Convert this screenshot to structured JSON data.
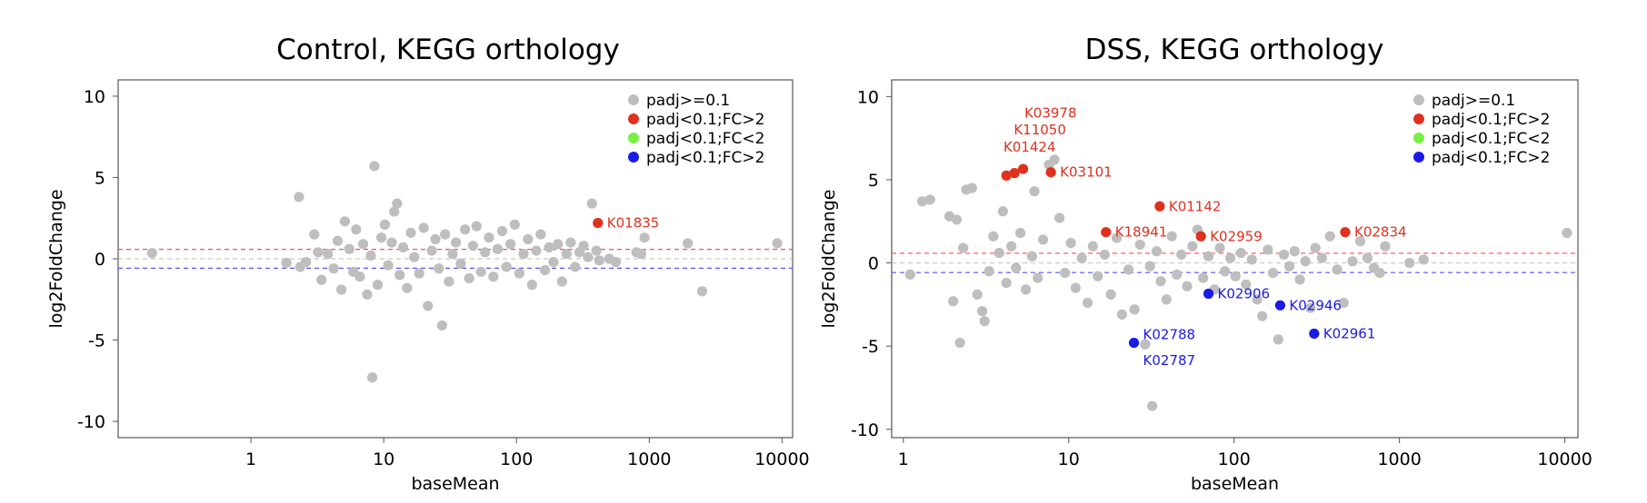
{
  "colors": {
    "gray": "#bebebe",
    "red": "#e0301e",
    "green": "#77f043",
    "blue": "#1a1ae6",
    "up_threshold": "#ff4c4c",
    "down_threshold": "#5555ff",
    "zero_line": "#c8c8c8"
  },
  "chart_data": [
    {
      "type": "scatter",
      "title": "Control, KEGG orthology",
      "xlabel": "baseMean",
      "ylabel": "log2FoldChange",
      "x_scale": "log",
      "xlim": [
        0.1,
        12000
      ],
      "ylim": [
        -11,
        11
      ],
      "x_ticks": [
        1,
        10,
        100,
        1000,
        10000
      ],
      "x_tick_labels": [
        "1",
        "10",
        "100",
        "1000",
        "10000"
      ],
      "y_ticks": [
        -10,
        -5,
        0,
        5,
        10
      ],
      "y_tick_labels": [
        "-10",
        "-5",
        "0",
        "5",
        "10"
      ],
      "thresholds": {
        "up": 0.58,
        "down": -0.58
      },
      "grid": false,
      "legend_position": "top-right",
      "legend": [
        {
          "label": "padj>=0.1",
          "color": "#bebebe"
        },
        {
          "label": "padj<0.1;FC>2",
          "color": "#e0301e"
        },
        {
          "label": "padj<0.1;FC<2",
          "color": "#77f043"
        },
        {
          "label": "padj<0.1;FC>2",
          "color": "#1a1ae6"
        }
      ],
      "series": [
        {
          "color": "#bebebe",
          "points": [
            [
              0.18,
              0.35
            ],
            [
              1.85,
              -0.25
            ],
            [
              2.3,
              3.8
            ],
            [
              2.35,
              -0.5
            ],
            [
              2.6,
              -0.2
            ],
            [
              3.0,
              1.5
            ],
            [
              3.2,
              0.4
            ],
            [
              3.4,
              -1.3
            ],
            [
              3.8,
              0.3
            ],
            [
              4.2,
              -0.6
            ],
            [
              4.5,
              1.1
            ],
            [
              4.8,
              -1.9
            ],
            [
              5.1,
              2.3
            ],
            [
              5.5,
              0.6
            ],
            [
              5.9,
              -0.8
            ],
            [
              6.2,
              1.8
            ],
            [
              6.6,
              -1.1
            ],
            [
              7.0,
              0.9
            ],
            [
              7.5,
              -2.2
            ],
            [
              8.0,
              0.2
            ],
            [
              8.5,
              5.7
            ],
            [
              8.2,
              -7.3
            ],
            [
              9.0,
              -1.6
            ],
            [
              9.6,
              1.3
            ],
            [
              10.2,
              2.1
            ],
            [
              10.8,
              -0.4
            ],
            [
              11.5,
              1.0
            ],
            [
              12.0,
              2.9
            ],
            [
              12.6,
              3.4
            ],
            [
              13.2,
              -1.0
            ],
            [
              14.0,
              0.7
            ],
            [
              15.0,
              -1.8
            ],
            [
              16.0,
              1.6
            ],
            [
              17.0,
              0.1
            ],
            [
              18.5,
              -0.9
            ],
            [
              20.0,
              1.9
            ],
            [
              21.5,
              -2.9
            ],
            [
              23.0,
              0.5
            ],
            [
              24.5,
              1.2
            ],
            [
              26.0,
              -0.6
            ],
            [
              27.5,
              -4.1
            ],
            [
              29.0,
              1.5
            ],
            [
              31.0,
              -1.4
            ],
            [
              33.0,
              0.3
            ],
            [
              35.0,
              1.0
            ],
            [
              38.0,
              -0.3
            ],
            [
              41.0,
              1.8
            ],
            [
              44.0,
              -1.2
            ],
            [
              47.0,
              0.8
            ],
            [
              50.0,
              2.0
            ],
            [
              54.0,
              -0.8
            ],
            [
              58.0,
              0.4
            ],
            [
              62.0,
              1.3
            ],
            [
              67.0,
              -1.1
            ],
            [
              72.0,
              0.6
            ],
            [
              78.0,
              1.7
            ],
            [
              84.0,
              -0.5
            ],
            [
              90.0,
              0.9
            ],
            [
              97.0,
              2.1
            ],
            [
              105.0,
              -0.9
            ],
            [
              113.0,
              0.3
            ],
            [
              122.0,
              1.2
            ],
            [
              131.0,
              -1.6
            ],
            [
              141.0,
              0.5
            ],
            [
              152.0,
              1.5
            ],
            [
              164.0,
              -0.7
            ],
            [
              176.0,
              0.7
            ],
            [
              190.0,
              -0.2
            ],
            [
              205.0,
              0.9
            ],
            [
              220.0,
              -1.4
            ],
            [
              238.0,
              0.3
            ],
            [
              256.0,
              1.0
            ],
            [
              276.0,
              -0.5
            ],
            [
              298.0,
              0.4
            ],
            [
              320.0,
              0.8
            ],
            [
              345.0,
              0.1
            ],
            [
              370.0,
              3.4
            ],
            [
              400.0,
              0.5
            ],
            [
              420.0,
              -0.1
            ],
            [
              500.0,
              0.0
            ],
            [
              560.0,
              -0.2
            ],
            [
              800.0,
              0.4
            ],
            [
              870.0,
              0.3
            ],
            [
              920.0,
              1.3
            ],
            [
              1950.0,
              0.95
            ],
            [
              2500.0,
              -2.0
            ],
            [
              9200.0,
              0.95
            ]
          ]
        },
        {
          "color": "#e0301e",
          "points": [
            [
              410.0,
              2.2
            ]
          ]
        },
        {
          "color": "#77f043",
          "points": []
        },
        {
          "color": "#1a1ae6",
          "points": []
        }
      ],
      "annotations": [
        {
          "text": "K01835",
          "x": 410.0,
          "y": 2.2,
          "color": "#e0301e"
        }
      ]
    },
    {
      "type": "scatter",
      "title": "DSS, KEGG orthology",
      "xlabel": "baseMean",
      "ylabel": "log2FoldChange",
      "x_scale": "log",
      "xlim": [
        0.85,
        12000
      ],
      "ylim": [
        -10.5,
        11
      ],
      "x_ticks": [
        1,
        10,
        100,
        1000,
        10000
      ],
      "x_tick_labels": [
        "1",
        "10",
        "100",
        "1000",
        "10000"
      ],
      "y_ticks": [
        -10,
        -5,
        0,
        5,
        10
      ],
      "y_tick_labels": [
        "-10",
        "-5",
        "0",
        "5",
        "10"
      ],
      "thresholds": {
        "up": 0.58,
        "down": -0.58
      },
      "grid": false,
      "legend_position": "top-right",
      "legend": [
        {
          "label": "padj>=0.1",
          "color": "#bebebe"
        },
        {
          "label": "padj<0.1;FC>2",
          "color": "#e0301e"
        },
        {
          "label": "padj<0.1;FC<2",
          "color": "#77f043"
        },
        {
          "label": "padj<0.1;FC>2",
          "color": "#1a1ae6"
        }
      ],
      "series": [
        {
          "color": "#bebebe",
          "points": [
            [
              1.1,
              -0.7
            ],
            [
              1.3,
              3.7
            ],
            [
              1.45,
              3.8
            ],
            [
              1.9,
              2.8
            ],
            [
              2.0,
              -2.3
            ],
            [
              2.1,
              2.6
            ],
            [
              2.2,
              -4.8
            ],
            [
              2.3,
              0.9
            ],
            [
              2.4,
              4.4
            ],
            [
              2.6,
              4.5
            ],
            [
              2.8,
              -1.9
            ],
            [
              3.0,
              -2.9
            ],
            [
              3.1,
              -3.5
            ],
            [
              3.3,
              -0.5
            ],
            [
              3.5,
              1.6
            ],
            [
              3.8,
              0.6
            ],
            [
              4.0,
              3.1
            ],
            [
              4.2,
              -1.2
            ],
            [
              4.5,
              1.0
            ],
            [
              4.8,
              -0.3
            ],
            [
              5.1,
              1.8
            ],
            [
              5.5,
              -1.6
            ],
            [
              6.0,
              0.4
            ],
            [
              6.2,
              4.3
            ],
            [
              6.5,
              -0.9
            ],
            [
              7.0,
              1.4
            ],
            [
              7.6,
              5.9
            ],
            [
              8.2,
              6.2
            ],
            [
              8.8,
              2.7
            ],
            [
              9.5,
              -0.6
            ],
            [
              10.3,
              1.2
            ],
            [
              11.0,
              -1.5
            ],
            [
              12.0,
              0.3
            ],
            [
              13.0,
              -2.4
            ],
            [
              14.0,
              1.0
            ],
            [
              15.0,
              -0.8
            ],
            [
              16.5,
              0.5
            ],
            [
              18.0,
              -1.9
            ],
            [
              19.5,
              1.5
            ],
            [
              21.0,
              -3.1
            ],
            [
              23.0,
              -0.4
            ],
            [
              25.0,
              -2.8
            ],
            [
              27.0,
              1.1
            ],
            [
              29.0,
              -4.9
            ],
            [
              31.0,
              -0.2
            ],
            [
              32.0,
              -8.6
            ],
            [
              34.0,
              0.7
            ],
            [
              36.0,
              -1.1
            ],
            [
              39.0,
              -2.2
            ],
            [
              42.0,
              1.6
            ],
            [
              45.0,
              -0.7
            ],
            [
              48.0,
              0.5
            ],
            [
              52.0,
              -1.4
            ],
            [
              56.0,
              1.0
            ],
            [
              60.0,
              2.0
            ],
            [
              65.0,
              -0.9
            ],
            [
              70.0,
              0.4
            ],
            [
              76.0,
              -1.6
            ],
            [
              82.0,
              0.9
            ],
            [
              88.0,
              -0.5
            ],
            [
              95.0,
              0.3
            ],
            [
              102.0,
              -0.8
            ],
            [
              110.0,
              0.6
            ],
            [
              118.0,
              -1.3
            ],
            [
              128.0,
              0.2
            ],
            [
              138.0,
              -2.2
            ],
            [
              148.0,
              -3.2
            ],
            [
              160.0,
              0.8
            ],
            [
              172.0,
              -0.6
            ],
            [
              185.0,
              -4.6
            ],
            [
              200.0,
              0.5
            ],
            [
              216.0,
              -0.2
            ],
            [
              232.0,
              0.7
            ],
            [
              250.0,
              -1.0
            ],
            [
              270.0,
              0.1
            ],
            [
              290.0,
              -2.7
            ],
            [
              310.0,
              0.9
            ],
            [
              340.0,
              0.3
            ],
            [
              380.0,
              1.6
            ],
            [
              420.0,
              -0.4
            ],
            [
              460.0,
              -2.4
            ],
            [
              520.0,
              0.1
            ],
            [
              580.0,
              1.3
            ],
            [
              640.0,
              0.3
            ],
            [
              700.0,
              -0.3
            ],
            [
              760.0,
              -0.6
            ],
            [
              820.0,
              1.0
            ],
            [
              1150.0,
              0.0
            ],
            [
              1400.0,
              0.2
            ],
            [
              10300.0,
              1.8
            ]
          ]
        },
        {
          "color": "#e0301e",
          "points": [
            [
              4.2,
              5.25
            ],
            [
              4.7,
              5.4
            ],
            [
              5.3,
              5.65
            ],
            [
              7.8,
              5.45
            ],
            [
              16.8,
              1.85
            ],
            [
              35.5,
              3.4
            ],
            [
              63.0,
              1.6
            ],
            [
              470.0,
              1.85
            ]
          ]
        },
        {
          "color": "#77f043",
          "points": []
        },
        {
          "color": "#1a1ae6",
          "points": [
            [
              24.8,
              -4.8
            ],
            [
              70.0,
              -1.85
            ],
            [
              190.0,
              -2.55
            ],
            [
              305.0,
              -4.25
            ]
          ]
        }
      ],
      "annotations": [
        {
          "text": "K03978",
          "x": 4.75,
          "y": 9.0,
          "color": "#e0301e"
        },
        {
          "text": "K11050",
          "x": 4.1,
          "y": 8.0,
          "color": "#e0301e"
        },
        {
          "text": "K01424",
          "x": 3.55,
          "y": 6.95,
          "color": "#e0301e"
        },
        {
          "text": "K03101",
          "x": 7.8,
          "y": 5.45,
          "color": "#e0301e"
        },
        {
          "text": "K01142",
          "x": 35.5,
          "y": 3.4,
          "color": "#e0301e"
        },
        {
          "text": "K18941",
          "x": 16.8,
          "y": 1.85,
          "color": "#e0301e"
        },
        {
          "text": "K02959",
          "x": 63.0,
          "y": 1.6,
          "color": "#e0301e"
        },
        {
          "text": "K02834",
          "x": 470.0,
          "y": 1.85,
          "color": "#e0301e"
        },
        {
          "text": "K02906",
          "x": 70.0,
          "y": -1.85,
          "color": "#1a1ae6"
        },
        {
          "text": "K02946",
          "x": 190.0,
          "y": -2.55,
          "color": "#1a1ae6"
        },
        {
          "text": "K02961",
          "x": 305.0,
          "y": -4.25,
          "color": "#1a1ae6"
        },
        {
          "text": "K02788",
          "x": 24.8,
          "y": -4.3,
          "color": "#1a1ae6"
        },
        {
          "text": "K02787",
          "x": 24.8,
          "y": -5.85,
          "color": "#1a1ae6"
        }
      ]
    }
  ]
}
